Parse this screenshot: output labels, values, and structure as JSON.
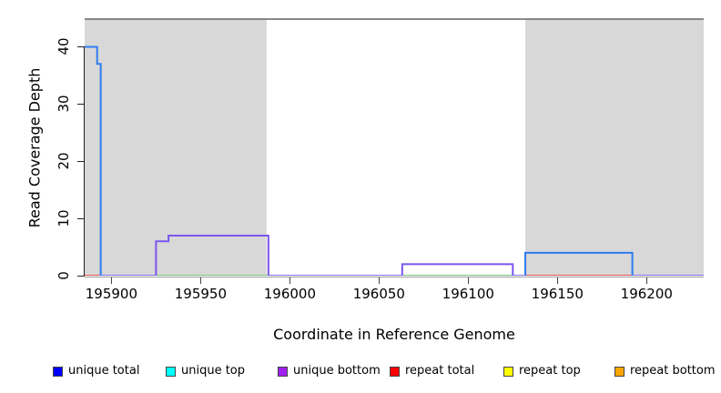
{
  "chart_data": {
    "type": "line",
    "subtype": "step-coverage",
    "title": "",
    "xlabel": "Coordinate in Reference Genome",
    "ylabel": "Read Coverage Depth",
    "xlim": [
      195885,
      196232
    ],
    "ylim": [
      0,
      45
    ],
    "x_ticks": [
      195900,
      195950,
      196000,
      196050,
      196100,
      196150,
      196200
    ],
    "y_ticks": [
      0,
      10,
      20,
      30,
      40
    ],
    "grid": false,
    "legend_position": "bottom",
    "shaded_regions": [
      {
        "name": "repeat-region-left",
        "x1": 195885,
        "x2": 195987,
        "fill": "#d8d8d8"
      },
      {
        "name": "repeat-region-right",
        "x1": 196132,
        "x2": 196232,
        "fill": "#d8d8d8"
      }
    ],
    "top_rule": {
      "y": 45,
      "color": "#888888"
    },
    "series": [
      {
        "name": "unique total",
        "color": "#0000ff",
        "segments": [
          {
            "x1": 195885,
            "x2": 195892,
            "y": 40
          },
          {
            "x1": 195892,
            "x2": 195894,
            "y": 37
          },
          {
            "x1": 195894,
            "x2": 196132,
            "y": 0
          },
          {
            "x1": 196132,
            "x2": 196192,
            "y": 4
          },
          {
            "x1": 196192,
            "x2": 196232,
            "y": 0
          }
        ]
      },
      {
        "name": "unique top",
        "color": "#00ffff",
        "segments": [
          {
            "x1": 195885,
            "x2": 196232,
            "y": 0
          }
        ]
      },
      {
        "name": "unique bottom",
        "color": "#a020f0",
        "segments": [
          {
            "x1": 195885,
            "x2": 195925,
            "y": 0
          },
          {
            "x1": 195925,
            "x2": 195932,
            "y": 6
          },
          {
            "x1": 195932,
            "x2": 195988,
            "y": 7
          },
          {
            "x1": 195988,
            "x2": 196063,
            "y": 0
          },
          {
            "x1": 196063,
            "x2": 196125,
            "y": 2
          },
          {
            "x1": 196125,
            "x2": 196232,
            "y": 0
          }
        ]
      },
      {
        "name": "repeat total",
        "color": "#ff0000",
        "segments": [
          {
            "x1": 195885,
            "x2": 196232,
            "y": 0
          }
        ]
      },
      {
        "name": "repeat top",
        "color": "#ffff00",
        "segments": [
          {
            "x1": 195885,
            "x2": 196232,
            "y": 0
          }
        ]
      },
      {
        "name": "repeat bottom",
        "color": "#ffa500",
        "segments": [
          {
            "x1": 195885,
            "x2": 196232,
            "y": 0
          }
        ]
      }
    ],
    "draw_paths": [
      {
        "name": "baseline-repeat-total-left",
        "color": "#e94f4f",
        "width": 2,
        "points": [
          [
            195885,
            0
          ],
          [
            195894,
            0
          ]
        ]
      },
      {
        "name": "baseline-unique-overlap-1",
        "color": "#8170ea",
        "width": 2,
        "points": [
          [
            195894,
            0
          ],
          [
            195925,
            0
          ]
        ]
      },
      {
        "name": "baseline-top-overlap-1",
        "color": "#74c67a",
        "width": 2,
        "points": [
          [
            195925,
            0
          ],
          [
            195988,
            0
          ]
        ]
      },
      {
        "name": "baseline-unique-overlap-2",
        "color": "#8170ea",
        "width": 2,
        "points": [
          [
            195988,
            0
          ],
          [
            196063,
            0
          ]
        ]
      },
      {
        "name": "baseline-top-overlap-2",
        "color": "#74c67a",
        "width": 2,
        "points": [
          [
            196063,
            0
          ],
          [
            196125,
            0
          ]
        ]
      },
      {
        "name": "baseline-unique-overlap-3",
        "color": "#8170ea",
        "width": 2,
        "points": [
          [
            196125,
            0
          ],
          [
            196132,
            0
          ]
        ]
      },
      {
        "name": "baseline-repeat-total-right",
        "color": "#e94f4f",
        "width": 2,
        "points": [
          [
            196132,
            0
          ],
          [
            196192,
            0
          ]
        ]
      },
      {
        "name": "baseline-unique-overlap-4",
        "color": "#8170ea",
        "width": 2,
        "points": [
          [
            196192,
            0
          ],
          [
            196232,
            0
          ]
        ]
      },
      {
        "name": "unique-bottom-step-1",
        "color": "#7a55ec",
        "width": 2,
        "points": [
          [
            195925,
            0
          ],
          [
            195925,
            6
          ],
          [
            195932,
            6
          ],
          [
            195932,
            7
          ],
          [
            195988,
            7
          ],
          [
            195988,
            0
          ]
        ]
      },
      {
        "name": "unique-bottom-step-2",
        "color": "#7a55ec",
        "width": 2,
        "points": [
          [
            196063,
            0
          ],
          [
            196063,
            2
          ],
          [
            196125,
            2
          ],
          [
            196125,
            0
          ]
        ]
      },
      {
        "name": "unique-total-spike",
        "color": "#2e7cf0",
        "width": 2,
        "points": [
          [
            195885,
            40
          ],
          [
            195892,
            40
          ],
          [
            195892,
            37
          ],
          [
            195894,
            37
          ],
          [
            195894,
            0
          ]
        ]
      },
      {
        "name": "unique-total-step-right",
        "color": "#2e7cf0",
        "width": 2,
        "points": [
          [
            196132,
            0
          ],
          [
            196132,
            4
          ],
          [
            196192,
            4
          ],
          [
            196192,
            0
          ]
        ]
      }
    ]
  },
  "legend": {
    "items": [
      {
        "label": "unique total",
        "color": "#0000ff"
      },
      {
        "label": "unique top",
        "color": "#00ffff"
      },
      {
        "label": "unique bottom",
        "color": "#a020f0"
      },
      {
        "label": "repeat total",
        "color": "#ff0000"
      },
      {
        "label": "repeat top",
        "color": "#ffff00"
      },
      {
        "label": "repeat bottom",
        "color": "#ffa500"
      }
    ]
  }
}
